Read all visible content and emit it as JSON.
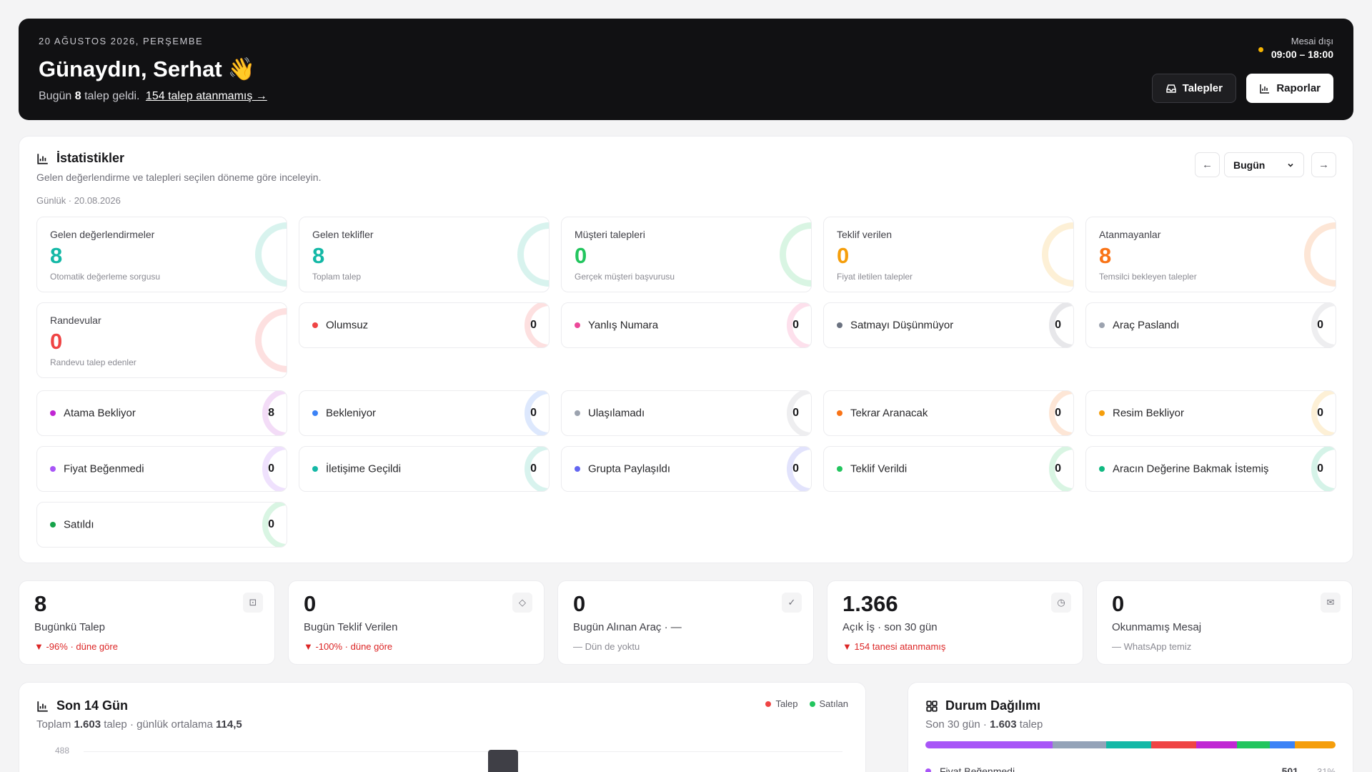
{
  "hero": {
    "date": "20 AĞUSTOS 2026, PERŞEMBE",
    "greeting": "Günaydın, Serhat",
    "wave": "👋",
    "sub_prefix": "Bugün",
    "sub_count": "8",
    "sub_middle": "talep geldi.",
    "sub_link": "154 talep atanmamış →",
    "status_label": "Mesai dışı",
    "status_hours": "09:00 – 18:00",
    "btn_requests": "Talepler",
    "btn_reports": "Raporlar",
    "status_color": "#f5b301"
  },
  "stats": {
    "title": "İstatistikler",
    "description": "Gelen değerlendirme ve talepleri seçilen döneme göre inceleyin.",
    "period_text": "Günlük · 20.08.2026",
    "period_select": "Bugün",
    "metrics": [
      {
        "label": "Gelen değerlendirmeler",
        "value": "8",
        "sub": "Otomatik değerleme sorgusu",
        "color": "#14b8a6",
        "ring": "#d8f3ee"
      },
      {
        "label": "Gelen teklifler",
        "value": "8",
        "sub": "Toplam talep",
        "color": "#14b8a6",
        "ring": "#d8f3ee"
      },
      {
        "label": "Müşteri talepleri",
        "value": "0",
        "sub": "Gerçek müşteri başvurusu",
        "color": "#22c55e",
        "ring": "#d9f5e3"
      },
      {
        "label": "Teklif verilen",
        "value": "0",
        "sub": "Fiyat iletilen talepler",
        "color": "#f59e0b",
        "ring": "#fdf0d6"
      },
      {
        "label": "Atanmayanlar",
        "value": "8",
        "sub": "Temsilci bekleyen talepler",
        "color": "#f97316",
        "ring": "#fde6d6"
      },
      {
        "label": "Randevular",
        "value": "0",
        "sub": "Randevu talep edenler",
        "color": "#ef4444",
        "ring": "#fde0e0"
      }
    ],
    "statuses": [
      {
        "label": "Olumsuz",
        "count": "0",
        "color": "#ef4444",
        "ring": "#fde0e0"
      },
      {
        "label": "Yanlış Numara",
        "count": "0",
        "color": "#ec4899",
        "ring": "#fde0ec"
      },
      {
        "label": "Satmayı Düşünmüyor",
        "count": "0",
        "color": "#6b7280",
        "ring": "#e7e7ea"
      },
      {
        "label": "Araç Paslandı",
        "count": "0",
        "color": "#9ca3af",
        "ring": "#eeeef0"
      },
      {
        "label": "Atama Bekliyor",
        "count": "8",
        "color": "#c026d3",
        "ring": "#f3dcf7"
      },
      {
        "label": "Bekleniyor",
        "count": "0",
        "color": "#3b82f6",
        "ring": "#dde8fd"
      },
      {
        "label": "Ulaşılamadı",
        "count": "0",
        "color": "#9ca3af",
        "ring": "#eeeef0"
      },
      {
        "label": "Tekrar Aranacak",
        "count": "0",
        "color": "#f97316",
        "ring": "#fde6d6"
      },
      {
        "label": "Resim Bekliyor",
        "count": "0",
        "color": "#f59e0b",
        "ring": "#fdf0d6"
      },
      {
        "label": "Fiyat Beğenmedi",
        "count": "0",
        "color": "#a855f7",
        "ring": "#efe1fd"
      },
      {
        "label": "İletişime Geçildi",
        "count": "0",
        "color": "#14b8a6",
        "ring": "#d8f3ee"
      },
      {
        "label": "Grupta Paylaşıldı",
        "count": "0",
        "color": "#6366f1",
        "ring": "#e2e3fc"
      },
      {
        "label": "Teklif Verildi",
        "count": "0",
        "color": "#22c55e",
        "ring": "#d9f5e3"
      },
      {
        "label": "Aracın Değerine Bakmak İstemiş",
        "count": "0",
        "color": "#10b981",
        "ring": "#d5f3e8"
      },
      {
        "label": "Satıldı",
        "count": "0",
        "color": "#16a34a",
        "ring": "#d9f5e3"
      }
    ]
  },
  "kpis": [
    {
      "value": "8",
      "label": "Bugünkü Talep",
      "trend": "▼ -96% · düne göre",
      "trend_type": "neg",
      "icon": "inbox-icon",
      "glyph": "⊡"
    },
    {
      "value": "0",
      "label": "Bugün Teklif Verilen",
      "trend": "▼ -100% · düne göre",
      "trend_type": "neg",
      "icon": "tag-icon",
      "glyph": "◇"
    },
    {
      "value": "0",
      "label": "Bugün Alınan Araç · —",
      "trend": "— Dün de yoktu",
      "trend_type": "neutral",
      "icon": "check-icon",
      "glyph": "✓"
    },
    {
      "value": "1.366",
      "label": "Açık İş · son 30 gün",
      "trend": "▼ 154 tanesi atanmamış",
      "trend_type": "neg",
      "icon": "clock-icon",
      "glyph": "◷"
    },
    {
      "value": "0",
      "label": "Okunmamış Mesaj",
      "trend": "— WhatsApp temiz",
      "trend_type": "neutral",
      "icon": "mail-icon",
      "glyph": "✉"
    }
  ],
  "last14": {
    "title": "Son 14 Gün",
    "sub_prefix": "Toplam",
    "total": "1.603",
    "sub_middle": "talep · günlük ortalama",
    "avg": "114,5",
    "axis_top": "488",
    "legend_request": "Talep",
    "legend_sold": "Satılan",
    "color_request": "#ef4444",
    "color_sold": "#22c55e"
  },
  "distribution": {
    "title": "Durum Dağılımı",
    "sub_prefix": "Son 30 gün ·",
    "total": "1.603",
    "sub_suffix": "talep",
    "segments": [
      {
        "color": "#a855f7",
        "share": 31
      },
      {
        "color": "#94a3b8",
        "share": 13
      },
      {
        "color": "#14b8a6",
        "share": 11
      },
      {
        "color": "#ef4444",
        "share": 11
      },
      {
        "color": "#c026d3",
        "share": 10
      },
      {
        "color": "#22c55e",
        "share": 8
      },
      {
        "color": "#3b82f6",
        "share": 6
      },
      {
        "color": "#f59e0b",
        "share": 10
      }
    ],
    "first_row": {
      "label": "Fiyat Beğenmedi",
      "count": "501",
      "pct": "31%",
      "color": "#a855f7"
    }
  }
}
